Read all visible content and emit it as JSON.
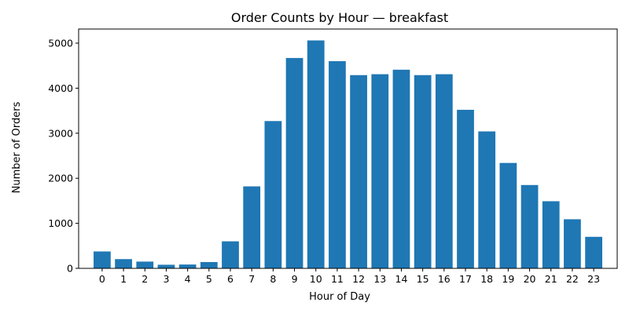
{
  "chart_data": {
    "type": "bar",
    "title": "Order Counts by Hour — breakfast",
    "xlabel": "Hour of Day",
    "ylabel": "Number of Orders",
    "categories": [
      "0",
      "1",
      "2",
      "3",
      "4",
      "5",
      "6",
      "7",
      "8",
      "9",
      "10",
      "11",
      "12",
      "13",
      "14",
      "15",
      "16",
      "17",
      "18",
      "19",
      "20",
      "21",
      "22",
      "23"
    ],
    "values": [
      375,
      205,
      150,
      80,
      85,
      140,
      600,
      1820,
      3270,
      4670,
      5060,
      4600,
      4290,
      4310,
      4410,
      4290,
      4310,
      3520,
      3040,
      2340,
      1850,
      1490,
      1090,
      700
    ],
    "ylim": [
      0,
      5313
    ],
    "yticks": [
      "0",
      "1000",
      "2000",
      "3000",
      "4000",
      "5000"
    ],
    "bar_color": "#1f77b4",
    "grid": false,
    "legend": "none"
  }
}
